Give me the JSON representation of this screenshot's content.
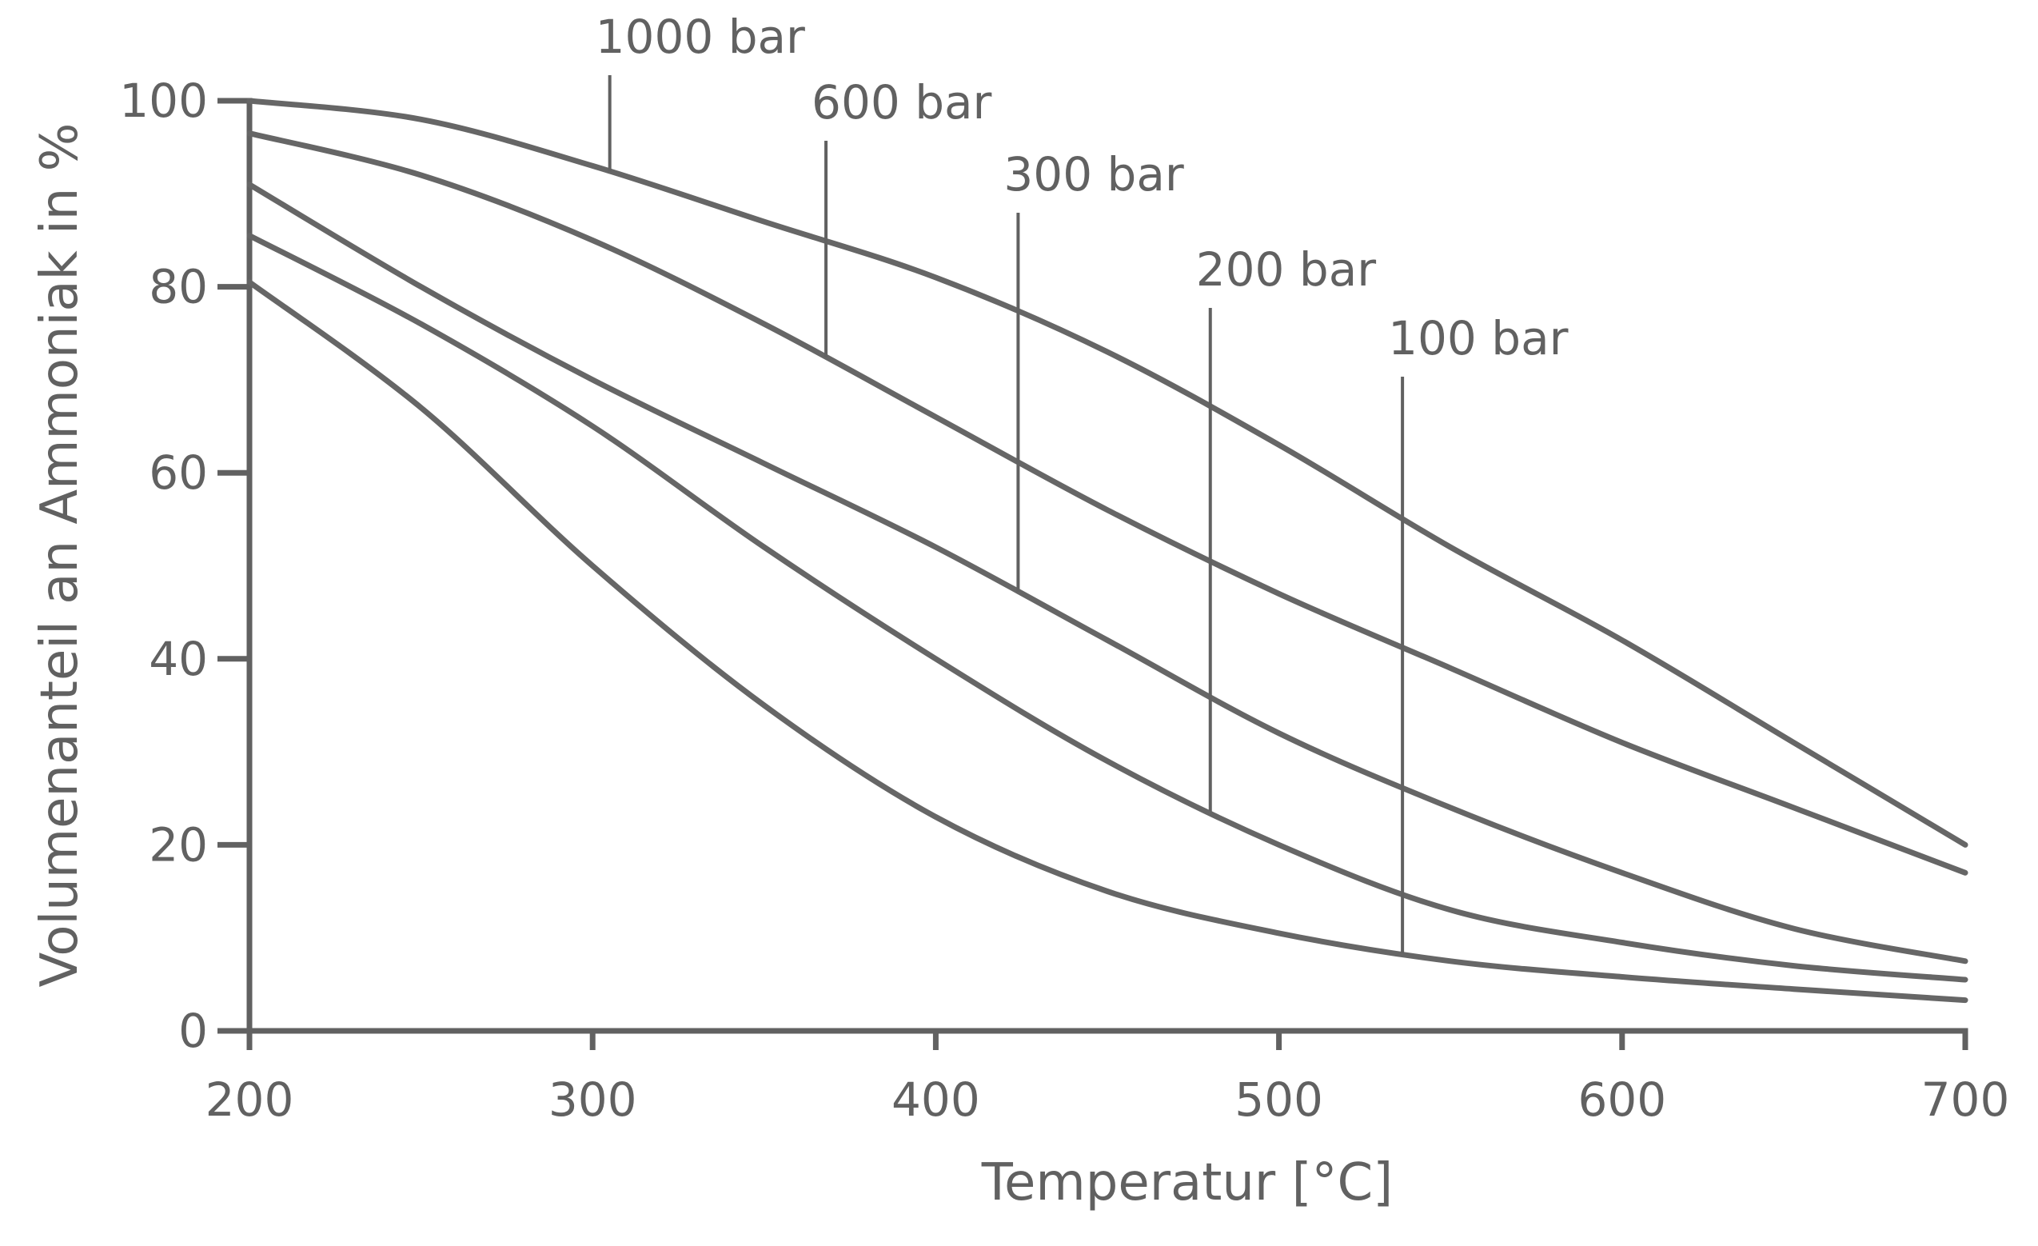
{
  "chart_data": {
    "type": "line",
    "title": "",
    "xlabel": "Temperatur [°C]",
    "ylabel": "Volumenanteil an Ammoniak in %",
    "xlim": [
      200,
      700
    ],
    "ylim": [
      0,
      100
    ],
    "xticks": [
      200,
      300,
      400,
      500,
      600,
      700
    ],
    "yticks": [
      0,
      20,
      40,
      60,
      80,
      100
    ],
    "grid": false,
    "legend": "inline labels with leader lines",
    "series": [
      {
        "name": "1000 bar",
        "label_at_x": 305,
        "points": [
          [
            200,
            100
          ],
          [
            250,
            98
          ],
          [
            300,
            93
          ],
          [
            350,
            87
          ],
          [
            400,
            81
          ],
          [
            450,
            73
          ],
          [
            500,
            63
          ],
          [
            550,
            52
          ],
          [
            600,
            42
          ],
          [
            650,
            31
          ],
          [
            700,
            20
          ]
        ]
      },
      {
        "name": "600 bar",
        "label_at_x": 368,
        "points": [
          [
            200,
            96.5
          ],
          [
            250,
            92
          ],
          [
            300,
            85
          ],
          [
            350,
            76
          ],
          [
            400,
            66
          ],
          [
            450,
            56
          ],
          [
            500,
            47
          ],
          [
            550,
            39
          ],
          [
            600,
            31
          ],
          [
            650,
            24
          ],
          [
            700,
            17
          ]
        ]
      },
      {
        "name": "300 bar",
        "label_at_x": 424,
        "points": [
          [
            200,
            91
          ],
          [
            250,
            80
          ],
          [
            300,
            70
          ],
          [
            350,
            61
          ],
          [
            400,
            52
          ],
          [
            450,
            42
          ],
          [
            500,
            32
          ],
          [
            550,
            24
          ],
          [
            600,
            17
          ],
          [
            650,
            11
          ],
          [
            700,
            7.5
          ]
        ]
      },
      {
        "name": "200 bar",
        "label_at_x": 480,
        "points": [
          [
            200,
            85.5
          ],
          [
            250,
            76
          ],
          [
            300,
            65
          ],
          [
            350,
            52
          ],
          [
            400,
            40
          ],
          [
            450,
            29
          ],
          [
            500,
            20
          ],
          [
            550,
            13
          ],
          [
            600,
            9.5
          ],
          [
            650,
            7
          ],
          [
            700,
            5.5
          ]
        ]
      },
      {
        "name": "100 bar",
        "label_at_x": 536,
        "points": [
          [
            200,
            80.5
          ],
          [
            250,
            67
          ],
          [
            300,
            50
          ],
          [
            350,
            35
          ],
          [
            400,
            23
          ],
          [
            450,
            15
          ],
          [
            500,
            10.5
          ],
          [
            550,
            7.5
          ],
          [
            600,
            5.8
          ],
          [
            650,
            4.5
          ],
          [
            700,
            3.3
          ]
        ]
      }
    ],
    "colors": {
      "lines": "#666666",
      "text": "#616161"
    }
  }
}
